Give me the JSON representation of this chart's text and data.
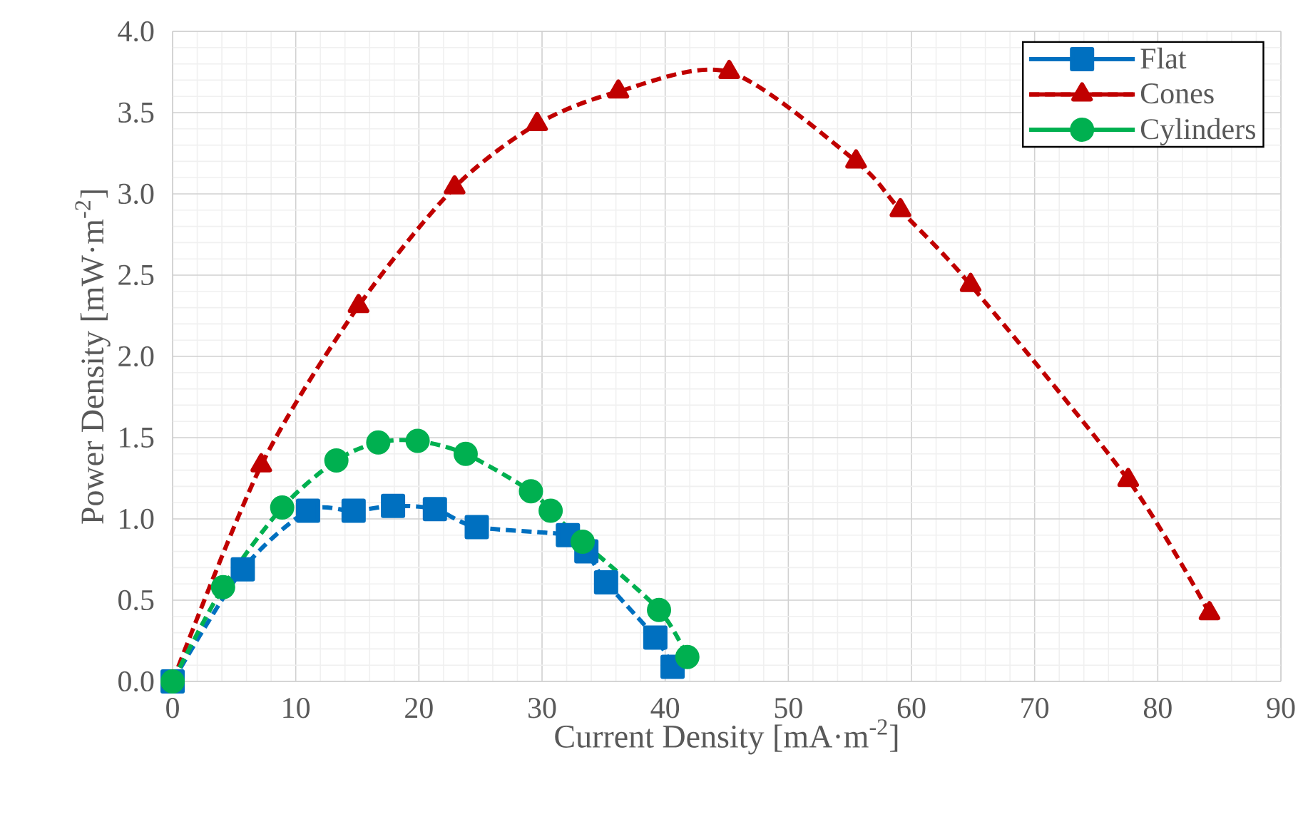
{
  "chart_data": {
    "type": "line",
    "xlabel": "Current Density [mA·m$^{-2}$]",
    "ylabel": "Power Density [mW·m$^{-2}$]",
    "xlim": [
      0,
      90
    ],
    "xticks": [
      0,
      10,
      20,
      30,
      40,
      50,
      60,
      70,
      80,
      90
    ],
    "ylim": [
      0,
      4
    ],
    "yticks": [
      {
        "value": 0,
        "label": "0.0"
      },
      {
        "value": 0.5,
        "label": "0.5"
      },
      {
        "value": 1,
        "label": "1.0"
      },
      {
        "value": 1.5,
        "label": "1.5"
      },
      {
        "value": 2,
        "label": "2.0"
      },
      {
        "value": 2.5,
        "label": "2.5"
      },
      {
        "value": 3,
        "label": "3.0"
      },
      {
        "value": 3.5,
        "label": "3.5"
      },
      {
        "value": 4,
        "label": "4.0"
      }
    ],
    "grid": true,
    "legend": "top right",
    "line_style": "dashed",
    "series": [
      {
        "name": "Flat",
        "color": "#0070c0",
        "marker": "square",
        "x": [
          0,
          5.7,
          11.0,
          14.7,
          17.9,
          21.3,
          24.7,
          32.1,
          33.6,
          35.2,
          39.2,
          40.6
        ],
        "values": [
          0,
          0.69,
          1.05,
          1.05,
          1.08,
          1.06,
          0.95,
          0.9,
          0.8,
          0.61,
          0.27,
          0.09
        ]
      },
      {
        "name": "Cones",
        "color": "#c00000",
        "marker": "triangle",
        "x": [
          0,
          7.2,
          15.1,
          22.9,
          29.6,
          36.2,
          45.2,
          55.5,
          59.1,
          64.8,
          77.6,
          84.2
        ],
        "values": [
          0,
          1.33,
          2.31,
          3.04,
          3.43,
          3.63,
          3.75,
          3.2,
          2.9,
          2.44,
          1.24,
          0.42
        ]
      },
      {
        "name": "Cylinders",
        "color": "#00b050",
        "marker": "circle",
        "x": [
          0,
          4.1,
          8.9,
          13.3,
          16.7,
          19.9,
          23.8,
          29.1,
          30.7,
          33.3,
          39.5,
          41.8
        ],
        "values": [
          0,
          0.58,
          1.07,
          1.36,
          1.47,
          1.48,
          1.4,
          1.17,
          1.05,
          0.86,
          0.44,
          0.15
        ]
      }
    ]
  }
}
